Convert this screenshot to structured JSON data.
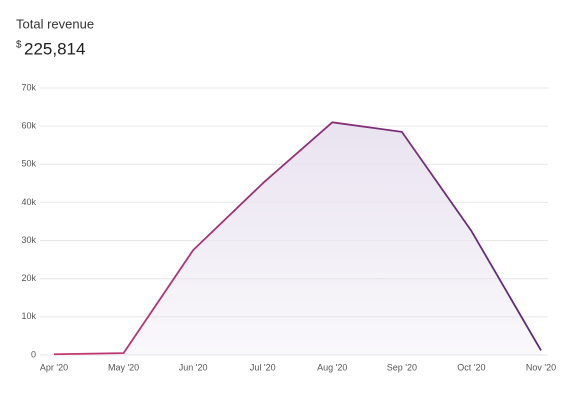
{
  "chart_data": {
    "type": "area-line",
    "title": "Total revenue",
    "currency": "$",
    "total": "225,814",
    "categories": [
      "Apr '20",
      "May '20",
      "Jun '20",
      "Jul '20",
      "Aug '20",
      "Sep '20",
      "Oct '20",
      "Nov '20"
    ],
    "values": [
      200,
      500,
      27500,
      45000,
      61000,
      58500,
      32500,
      1200
    ],
    "line_colors": [
      "#c8396f",
      "#5a2a7d"
    ],
    "fill_color": "#e9e3f0",
    "ylim": [
      0,
      70000
    ],
    "yticks": [
      {
        "value": 0,
        "label": "0"
      },
      {
        "value": 10000,
        "label": "10k"
      },
      {
        "value": 20000,
        "label": "20k"
      },
      {
        "value": 30000,
        "label": "30k"
      },
      {
        "value": 40000,
        "label": "40k"
      },
      {
        "value": 50000,
        "label": "50k"
      },
      {
        "value": 60000,
        "label": "60k"
      },
      {
        "value": 70000,
        "label": "70k"
      }
    ],
    "grid": true
  }
}
